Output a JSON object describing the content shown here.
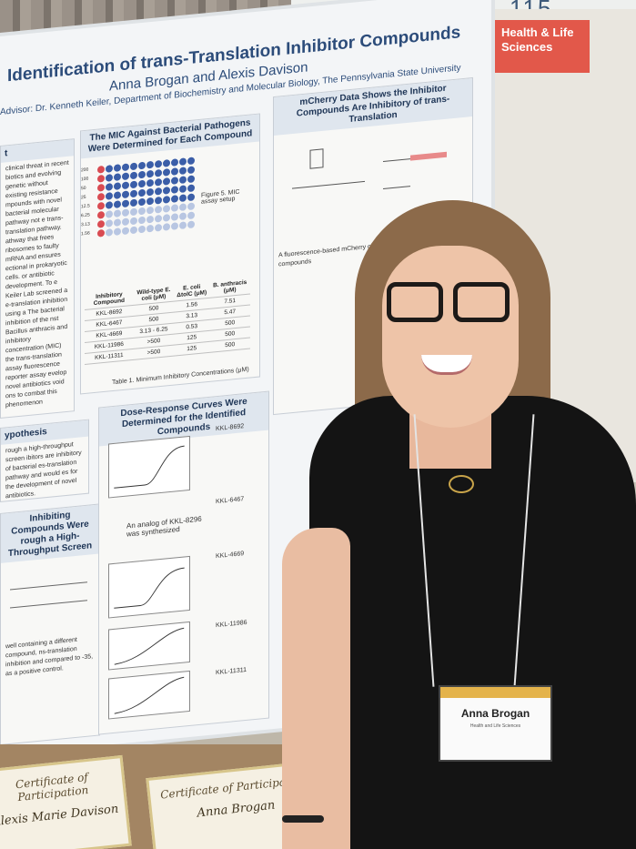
{
  "scene": {
    "board_number": "115",
    "category_sign": "Health & Life Sciences"
  },
  "poster": {
    "title": "Identification of trans-Translation Inhibitor Compounds",
    "authors": "Anna Brogan and Alexis Davison",
    "advisor": "Advisor: Dr. Kenneth Keiler, Department of Biochemistry and Molecular Biology, The Pennsylvania State University",
    "mic_panel": {
      "heading": "The MIC Against Bacterial Pathogens Were Determined for Each Compound",
      "figure_caption": "Figure 5. MIC assay setup",
      "table_caption": "Table 1. Minimum Inhibitory Concentrations (μM)",
      "headers": [
        "Inhibitory Compound",
        "Wild-type E. coli (μM)",
        "E. coli ΔtolC (μM)",
        "B. anthracis (μM)"
      ],
      "rows": [
        [
          "KKL-8692",
          "500",
          "1.56",
          "7.51"
        ],
        [
          "KKL-6467",
          "500",
          "3.13",
          "5.47"
        ],
        [
          "KKL-4669",
          "3.13 - 6.25",
          "0.53",
          "500"
        ],
        [
          "KKL-11986",
          ">500",
          "125",
          "500"
        ],
        [
          "KKL-11311",
          ">500",
          "125",
          "500"
        ]
      ],
      "plate_concentrations": [
        "200",
        "100",
        "50",
        "25",
        "12.5",
        "6.25",
        "3.13",
        "1.56"
      ]
    },
    "mcherry_panel": {
      "heading": "mCherry Data Shows the Inhibitor Compounds Are Inhibitory of trans-Translation",
      "text": "A fluorescence-based mCherry confirm the trans-translation compounds"
    },
    "dose_panel": {
      "heading": "Dose-Response Curves Were Determined for the Identified Compounds",
      "compound_top": "KKL-8692",
      "compound_mid": "KKL-6467",
      "analog_note": "An analog of KKL-8296 was synthesized",
      "compound_3": "KKL-4669",
      "compound_4": "KKL-11986",
      "compound_5": "KKL-11311"
    },
    "hypothesis_panel": {
      "heading": "ypothesis",
      "text": "rough a high-throughput screen ibitors are inhibitory of bacterial es-translation pathway and would es for the development of novel antibiotics."
    },
    "screen_panel": {
      "heading": "Inhibiting Compounds Were rough a High-Throughput Screen",
      "text": "well containing a different compound, ns-translation inhibition and compared to -35, as a positive control."
    },
    "intro_panel": {
      "heading": "t",
      "text": "clinical threat in recent biotics and evolving genetic without existing resistance mpounds with novel bacterial molecular pathway not e trans-translation pathway. athway that frees ribosomes to faulty mRNA and ensures ectional in prokaryotic cells. or antibiotic development. To e Keiler Lab screened a e-translation inhibition using a The bacterial inhibition of the nst Bacillus anthracis and inhibitory concentration (MIC) the trans-translation assay fluorescence reporter assay evelop novel antibiotics void ons to combat this phenomenon"
    }
  },
  "certificates": [
    {
      "title": "Certificate of Participation",
      "name": "Alexis Marie Davison"
    },
    {
      "title": "Certificate of Participation",
      "name": "Anna Brogan"
    }
  ],
  "badge": {
    "name": "Anna Brogan",
    "department": "Health and Life Sciences"
  },
  "colors": {
    "poster_blue": "#2c4c7a",
    "sign_red": "#e2584a",
    "well_blue": "#3b5ea8",
    "well_red": "#d94b52"
  }
}
